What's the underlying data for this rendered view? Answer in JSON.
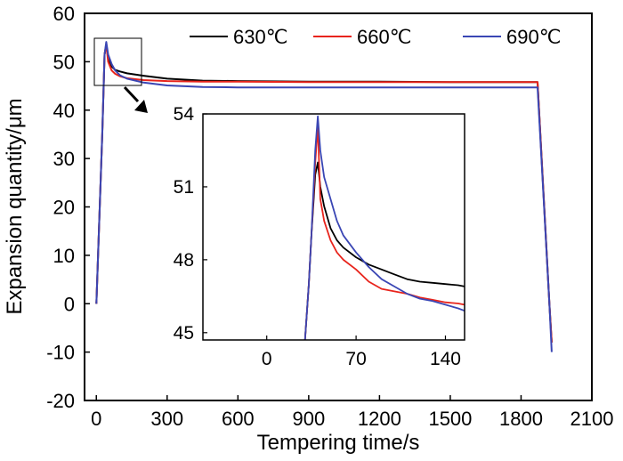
{
  "chart_data": {
    "type": "line",
    "xlabel": "Tempering time/s",
    "ylabel": "Expansion quantity/μm",
    "xlim": [
      -50,
      2100
    ],
    "ylim": [
      -20,
      60
    ],
    "xticks": [
      0,
      300,
      600,
      900,
      1200,
      1500,
      1800,
      2100
    ],
    "yticks": [
      60,
      50,
      40,
      30,
      20,
      10,
      0,
      -10,
      -20
    ],
    "legend": {
      "placement": "top-right"
    },
    "series": [
      {
        "name": "630℃",
        "color": "#000000",
        "x": [
          0,
          25,
          35,
          42,
          50,
          65,
          80,
          100,
          130,
          200,
          300,
          450,
          600,
          900,
          1200,
          1500,
          1870,
          1920,
          1930
        ],
        "y": [
          0,
          35,
          51.5,
          53.5,
          51,
          49,
          48.3,
          48,
          47.6,
          47.1,
          46.5,
          46.1,
          46,
          45.9,
          45.9,
          45.8,
          45.8,
          0,
          -8
        ]
      },
      {
        "name": "660℃",
        "color": "#e8241c",
        "x": [
          0,
          25,
          35,
          42,
          50,
          65,
          80,
          100,
          130,
          200,
          300,
          450,
          600,
          900,
          1200,
          1500,
          1870,
          1920,
          1930
        ],
        "y": [
          0,
          35,
          51.5,
          53.6,
          50,
          48.2,
          47.5,
          47,
          46.6,
          46.2,
          46,
          45.9,
          45.9,
          45.8,
          45.8,
          45.8,
          45.8,
          0,
          -8
        ]
      },
      {
        "name": "690℃",
        "color": "#3a46b4",
        "x": [
          0,
          25,
          35,
          42,
          50,
          65,
          80,
          100,
          130,
          200,
          300,
          450,
          600,
          900,
          1200,
          1500,
          1870,
          1920,
          1930
        ],
        "y": [
          0,
          35,
          51.5,
          54.1,
          51.5,
          49.5,
          48.2,
          47.2,
          46.5,
          45.7,
          45.1,
          44.8,
          44.7,
          44.7,
          44.7,
          44.7,
          44.7,
          0,
          -10
        ]
      }
    ],
    "inset": {
      "xlim": [
        -50,
        155
      ],
      "ylim": [
        44.7,
        54
      ],
      "xticks": [
        0,
        70,
        140
      ],
      "yticks": [
        54,
        51,
        48,
        45
      ],
      "series": [
        {
          "name": "630℃",
          "color": "#000000",
          "x": [
            30,
            33,
            35,
            38,
            40,
            42,
            45,
            50,
            55,
            60,
            70,
            80,
            90,
            100,
            110,
            120,
            130,
            140,
            150,
            155
          ],
          "y": [
            44.7,
            47,
            49,
            51.5,
            52,
            51,
            50.2,
            49.3,
            48.8,
            48.5,
            48.1,
            47.8,
            47.6,
            47.4,
            47.2,
            47.1,
            47.05,
            47,
            46.95,
            46.9
          ]
        },
        {
          "name": "660℃",
          "color": "#e8241c",
          "x": [
            30,
            33,
            35,
            38,
            40,
            42,
            45,
            50,
            55,
            60,
            70,
            80,
            90,
            100,
            110,
            120,
            130,
            140,
            150,
            155
          ],
          "y": [
            44.7,
            47,
            49,
            52,
            53.5,
            50.5,
            49.6,
            48.8,
            48.3,
            48,
            47.6,
            47.1,
            46.8,
            46.7,
            46.6,
            46.45,
            46.35,
            46.25,
            46.2,
            46.15
          ]
        },
        {
          "name": "690℃",
          "color": "#3a46b4",
          "x": [
            30,
            33,
            35,
            38,
            40,
            42,
            45,
            50,
            55,
            60,
            70,
            80,
            90,
            100,
            110,
            120,
            130,
            140,
            150,
            155
          ],
          "y": [
            44.7,
            47,
            49,
            52.5,
            53.9,
            52.5,
            51.4,
            50.5,
            49.6,
            49,
            48.3,
            47.7,
            47.2,
            46.9,
            46.6,
            46.4,
            46.3,
            46.15,
            46.0,
            45.9
          ]
        }
      ]
    }
  }
}
